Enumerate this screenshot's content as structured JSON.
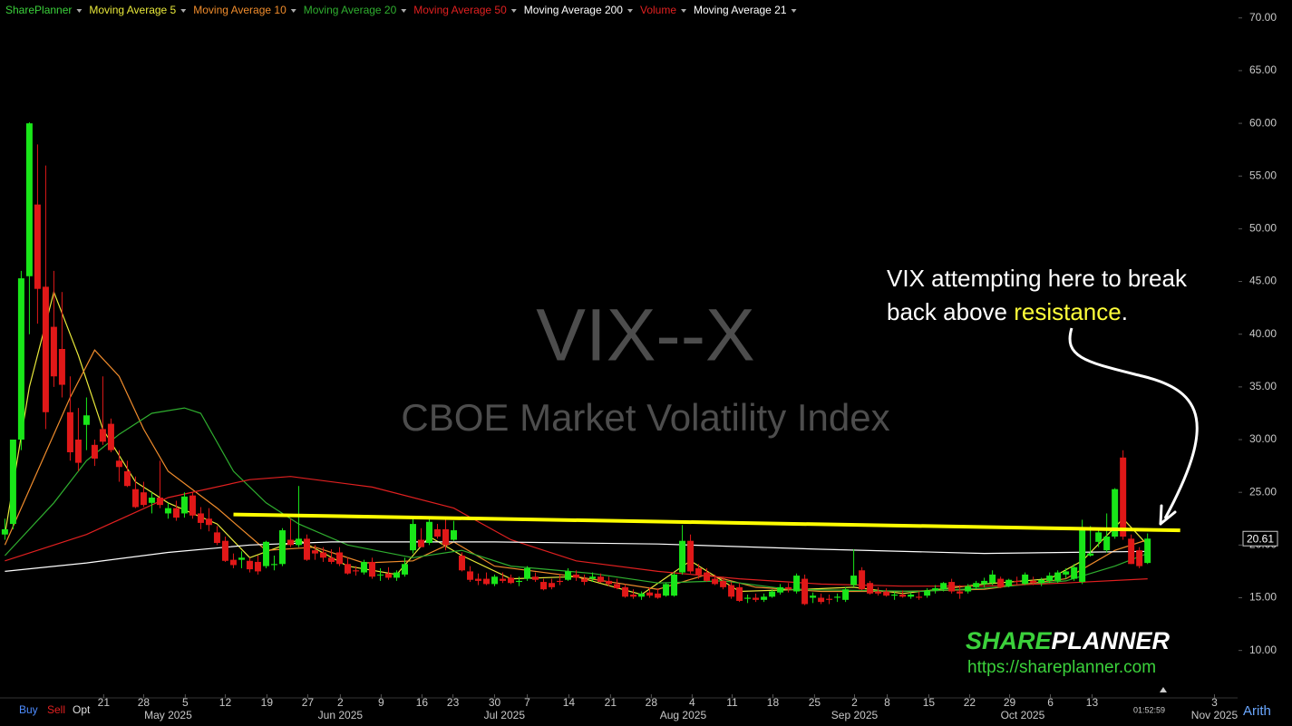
{
  "chart_data": {
    "type": "candlestick",
    "title": "VIX--X",
    "subtitle": "CBOE Market Volatility Index",
    "legend": [
      {
        "name": "SharePlanner",
        "color": "#3bd13b"
      },
      {
        "name": "Moving Average 5",
        "color": "#e8e83a"
      },
      {
        "name": "Moving Average 10",
        "color": "#f08c2c"
      },
      {
        "name": "Moving Average 20",
        "color": "#2fae2f"
      },
      {
        "name": "Moving Average 50",
        "color": "#e02020"
      },
      {
        "name": "Moving Average 200",
        "color": "#ffffff"
      },
      {
        "name": "Volume",
        "color": "#e02020"
      },
      {
        "name": "Moving Average 21",
        "color": "#ffffff"
      }
    ],
    "up_color": "#19e619",
    "down_color": "#e01818",
    "candles": [
      [
        21,
        22.5,
        20.5,
        21.5
      ],
      [
        22,
        30,
        21.5,
        30
      ],
      [
        30,
        46,
        29,
        45.3
      ],
      [
        45.5,
        60.1,
        40,
        60
      ],
      [
        52.3,
        58,
        41,
        44.3
      ],
      [
        44.5,
        56,
        31,
        32.6
      ],
      [
        40.7,
        46,
        35,
        36
      ],
      [
        38.6,
        44,
        34,
        35.2
      ],
      [
        32.6,
        36,
        28,
        28.8
      ],
      [
        30,
        33,
        27,
        27.8
      ],
      [
        31.4,
        34,
        29,
        32.3
      ],
      [
        29.5,
        30,
        27.5,
        28.2
      ],
      [
        31,
        36,
        29.5,
        29.8
      ],
      [
        31.5,
        32,
        28.8,
        29
      ],
      [
        28,
        29,
        26,
        27.4
      ],
      [
        27,
        28,
        25.5,
        25.6
      ],
      [
        25.3,
        26.5,
        23.5,
        23.6
      ],
      [
        25,
        26,
        23.6,
        23.8
      ],
      [
        24,
        25,
        23,
        24.5
      ],
      [
        24.5,
        28,
        23.5,
        23.8
      ],
      [
        23,
        24,
        22.5,
        23.5
      ],
      [
        23.5,
        24.2,
        22.3,
        22.6
      ],
      [
        23,
        25,
        22.6,
        24.6
      ],
      [
        24.7,
        25,
        22.5,
        22.8
      ],
      [
        23,
        23.6,
        21.5,
        22.1
      ],
      [
        22.5,
        23.5,
        21.3,
        21.9
      ],
      [
        21.2,
        21.8,
        20,
        20.2
      ],
      [
        20.4,
        20.8,
        18.4,
        18.5
      ],
      [
        18.6,
        19.2,
        17.8,
        18.1
      ],
      [
        18.6,
        19.4,
        17.8,
        18.8
      ],
      [
        18.5,
        18.8,
        17.4,
        17.7
      ],
      [
        18.4,
        19,
        17.2,
        17.5
      ],
      [
        18,
        20.4,
        17.8,
        20.3
      ],
      [
        18.1,
        19,
        17.6,
        18.2
      ],
      [
        18.2,
        21.6,
        18,
        21.4
      ],
      [
        20.5,
        22.5,
        19.8,
        20
      ],
      [
        20,
        25.6,
        19.8,
        20.6
      ],
      [
        20.6,
        21,
        18.5,
        18.6
      ],
      [
        19.5,
        20,
        18.6,
        19.2
      ],
      [
        19.3,
        19.8,
        18.4,
        18.8
      ],
      [
        18.8,
        19.6,
        18.2,
        18.4
      ],
      [
        19.3,
        19.8,
        18,
        18.2
      ],
      [
        18.2,
        18.8,
        17.2,
        17.3
      ],
      [
        17.6,
        18,
        17.1,
        17.5
      ],
      [
        17.4,
        18.6,
        17.2,
        18.4
      ],
      [
        18.4,
        18.8,
        16.8,
        17
      ],
      [
        17.2,
        17.8,
        16.6,
        17.2
      ],
      [
        17.3,
        17.9,
        16.7,
        16.9
      ],
      [
        16.9,
        17.6,
        16.6,
        17.4
      ],
      [
        17.2,
        18.8,
        17,
        18.2
      ],
      [
        19.5,
        22.5,
        19.2,
        22
      ],
      [
        20.5,
        21.6,
        19.8,
        19.8
      ],
      [
        20.2,
        22.6,
        20,
        22.2
      ],
      [
        21.5,
        22,
        20.6,
        20.8
      ],
      [
        21.5,
        22.5,
        19.5,
        20
      ],
      [
        20.5,
        22.3,
        20.4,
        21.4
      ],
      [
        19,
        19.3,
        17.5,
        17.6
      ],
      [
        17.5,
        18,
        16.5,
        16.7
      ],
      [
        16.8,
        17.3,
        16.2,
        16.6
      ],
      [
        16.8,
        17.4,
        16.2,
        16.3
      ],
      [
        16.3,
        17.2,
        16.1,
        17
      ],
      [
        16.8,
        17.4,
        16.4,
        16.6
      ],
      [
        16.9,
        17.2,
        16.3,
        16.4
      ],
      [
        16.5,
        17,
        16.1,
        16.6
      ],
      [
        16.8,
        18,
        16.6,
        17.8
      ],
      [
        17,
        17.4,
        16.5,
        16.7
      ],
      [
        16.5,
        16.8,
        15.7,
        15.8
      ],
      [
        16.4,
        16.8,
        15.8,
        16
      ],
      [
        16.6,
        17.2,
        16.2,
        16.5
      ],
      [
        16.7,
        17.8,
        16.6,
        17.5
      ],
      [
        17.2,
        17.6,
        16.6,
        16.9
      ],
      [
        16.8,
        17.2,
        16.2,
        16.5
      ],
      [
        16.8,
        17.4,
        16.5,
        17
      ],
      [
        17,
        17.3,
        16.4,
        16.5
      ],
      [
        16.6,
        17,
        16.1,
        16.3
      ],
      [
        16.3,
        16.8,
        15.8,
        15.9
      ],
      [
        16,
        16.3,
        15,
        15.1
      ],
      [
        15.3,
        15.8,
        14.9,
        15.1
      ],
      [
        15.1,
        15.6,
        14.8,
        15.4
      ],
      [
        15.5,
        16,
        15,
        15.2
      ],
      [
        15.4,
        15.9,
        14.9,
        15
      ],
      [
        15.2,
        16.4,
        15.1,
        16.3
      ],
      [
        15.2,
        17.4,
        15.1,
        17.2
      ],
      [
        17.4,
        21.9,
        17.2,
        20.4
      ],
      [
        20.4,
        21,
        17.3,
        17.5
      ],
      [
        17.8,
        18.2,
        16.8,
        17.2
      ],
      [
        17.4,
        17.8,
        16.5,
        16.6
      ],
      [
        16.8,
        17.2,
        16.2,
        16.3
      ],
      [
        16.6,
        17,
        15.8,
        16
      ],
      [
        16.2,
        16.5,
        14.9,
        15.1
      ],
      [
        16,
        16.4,
        14.6,
        14.7
      ],
      [
        14.9,
        15.3,
        14.5,
        15
      ],
      [
        15,
        15.4,
        14.6,
        14.8
      ],
      [
        14.8,
        15.4,
        14.6,
        15.1
      ],
      [
        15.1,
        15.8,
        15,
        15.6
      ],
      [
        15.5,
        16.3,
        15.3,
        16
      ],
      [
        16,
        16.4,
        15.5,
        15.8
      ],
      [
        15.6,
        17.3,
        15.4,
        17.1
      ],
      [
        16.8,
        17.2,
        14.3,
        14.4
      ],
      [
        15,
        15.5,
        14.5,
        15.2
      ],
      [
        15,
        15.4,
        14.4,
        14.6
      ],
      [
        14.9,
        15.3,
        14.4,
        14.8
      ],
      [
        15,
        15.4,
        14.6,
        15.1
      ],
      [
        14.8,
        16,
        14.6,
        15.8
      ],
      [
        16.2,
        19.6,
        16,
        17.1
      ],
      [
        17.6,
        17.9,
        15.7,
        15.8
      ],
      [
        16.4,
        16.6,
        15.3,
        15.4
      ],
      [
        15.6,
        16,
        15.2,
        15.4
      ],
      [
        15.6,
        15.9,
        15.1,
        15.2
      ],
      [
        15.2,
        15.6,
        14.8,
        15.3
      ],
      [
        15.3,
        15.7,
        15,
        15.1
      ],
      [
        15.1,
        15.5,
        14.9,
        15.3
      ],
      [
        15.1,
        15.6,
        14.8,
        15
      ],
      [
        15.2,
        15.9,
        15,
        15.7
      ],
      [
        15.7,
        16.2,
        15.4,
        15.9
      ],
      [
        15.8,
        16.5,
        15.6,
        16.4
      ],
      [
        16.5,
        16.8,
        15.4,
        15.6
      ],
      [
        15.6,
        16.2,
        14.9,
        15.4
      ],
      [
        15.6,
        16.3,
        15.4,
        16.1
      ],
      [
        16,
        16.6,
        15.8,
        16.4
      ],
      [
        16.3,
        16.9,
        16,
        16.6
      ],
      [
        16.4,
        17.6,
        16.2,
        17.2
      ],
      [
        16.8,
        17,
        15.9,
        16
      ],
      [
        16.1,
        16.8,
        16,
        16.7
      ],
      [
        16.6,
        17,
        16.2,
        16.5
      ],
      [
        16.3,
        17.4,
        16.2,
        17.2
      ],
      [
        16.6,
        17,
        16.2,
        16.4
      ],
      [
        16.4,
        16.9,
        16.1,
        16.7
      ],
      [
        16.6,
        17.4,
        16.4,
        17.1
      ],
      [
        16.6,
        17.6,
        16.4,
        17.4
      ],
      [
        17.2,
        17.8,
        16.8,
        17.5
      ],
      [
        16.8,
        18.2,
        16.6,
        17.9
      ],
      [
        16.5,
        22.4,
        16.3,
        21.7
      ],
      [
        19,
        21.8,
        18.9,
        19.2
      ],
      [
        20.3,
        21.5,
        19.8,
        21.2
      ],
      [
        19.5,
        23,
        19.3,
        20.8
      ],
      [
        20.8,
        25.4,
        20.6,
        25.3
      ],
      [
        28.3,
        28.99,
        20.5,
        20.8
      ],
      [
        20.6,
        21,
        18.2,
        18.2
      ],
      [
        19.5,
        19.8,
        17.8,
        18
      ],
      [
        18.3,
        21.1,
        18.2,
        20.61
      ]
    ],
    "series": [
      {
        "name": "Moving Average 5",
        "color": "#e8e83a",
        "x": [
          0,
          3,
          6,
          9,
          12,
          16,
          20,
          26,
          30,
          36,
          42,
          48,
          52,
          56,
          62,
          70,
          78,
          84,
          90,
          98,
          104,
          110,
          120,
          128,
          132,
          137,
          140
        ],
        "values": [
          21,
          35,
          44,
          38,
          31,
          26,
          24,
          22,
          18.8,
          20.5,
          18,
          17.2,
          20.8,
          19,
          16.8,
          17,
          15.3,
          18.5,
          15.6,
          15.8,
          16,
          15.4,
          16.3,
          16.8,
          18.5,
          22.5,
          20
        ]
      },
      {
        "name": "Moving Average 10",
        "color": "#f08c2c",
        "x": [
          0,
          4,
          8,
          11,
          14,
          17,
          20,
          26,
          32,
          38,
          44,
          50,
          55,
          60,
          70,
          80,
          86,
          92,
          100,
          110,
          120,
          130,
          136,
          140
        ],
        "values": [
          20,
          27,
          34,
          38.5,
          36,
          31,
          27,
          23.5,
          19.5,
          19.8,
          18.3,
          18.5,
          20.3,
          18,
          17,
          15.8,
          17.2,
          16,
          15.6,
          15.6,
          15.8,
          16.8,
          19.5,
          20.5
        ]
      },
      {
        "name": "Moving Average 20",
        "color": "#2fae2f",
        "x": [
          0,
          6,
          10,
          14,
          18,
          22,
          24,
          28,
          32,
          36,
          42,
          50,
          56,
          62,
          72,
          80,
          88,
          96,
          104,
          112,
          120,
          130,
          136,
          140
        ],
        "values": [
          19,
          24,
          28,
          30.5,
          32.5,
          33,
          32.5,
          27,
          24,
          22,
          20,
          18.8,
          19.5,
          18,
          17.3,
          16.4,
          16.6,
          15.8,
          15.7,
          15.6,
          15.9,
          16.6,
          18,
          19.2
        ]
      },
      {
        "name": "Moving Average 50",
        "color": "#e02020",
        "x": [
          0,
          10,
          20,
          30,
          35,
          45,
          55,
          62,
          70,
          80,
          90,
          100,
          110,
          120,
          130,
          140
        ],
        "values": [
          18.5,
          21,
          24.5,
          26.2,
          26.5,
          25.5,
          23.5,
          20.5,
          18.5,
          17.5,
          16.8,
          16.3,
          16.1,
          16.1,
          16.4,
          16.8
        ]
      },
      {
        "name": "Moving Average 200",
        "color": "#ffffff",
        "x": [
          0,
          10,
          20,
          30,
          40,
          60,
          80,
          100,
          120,
          130,
          140
        ],
        "values": [
          17.5,
          18.3,
          19.3,
          20,
          20.3,
          20.3,
          20.1,
          19.6,
          19.2,
          19.3,
          19.4
        ]
      }
    ],
    "resistance": {
      "color": "#ffff00",
      "x": [
        28,
        144
      ],
      "values": [
        22.9,
        21.4
      ]
    },
    "last_price": 20.61,
    "xlim": [
      -0.6,
      157.7
    ],
    "ylim": [
      5.5,
      71.7
    ],
    "yticks": [
      {
        "value": 10,
        "label": "10.00"
      },
      {
        "value": 15,
        "label": "15.00"
      },
      {
        "value": 20,
        "label": "20.00"
      },
      {
        "value": 25,
        "label": "25.00"
      },
      {
        "value": 30,
        "label": "30.00"
      },
      {
        "value": 35,
        "label": "35.00"
      },
      {
        "value": 40,
        "label": "40.00"
      },
      {
        "value": 45,
        "label": "45.00"
      },
      {
        "value": 50,
        "label": "50.00"
      },
      {
        "value": 55,
        "label": "55.00"
      },
      {
        "value": 60,
        "label": "60.00"
      },
      {
        "value": 65,
        "label": "65.00"
      },
      {
        "value": 70,
        "label": "70.00"
      }
    ],
    "xticks": [
      {
        "value": 12.1,
        "label": "21"
      },
      {
        "value": 17,
        "label": "28"
      },
      {
        "value": 22.1,
        "label": "5"
      },
      {
        "value": 27,
        "label": "12"
      },
      {
        "value": 32.1,
        "label": "19"
      },
      {
        "value": 37.1,
        "label": "27"
      },
      {
        "value": 41.1,
        "label": "2"
      },
      {
        "value": 46.1,
        "label": "9"
      },
      {
        "value": 51.1,
        "label": "16"
      },
      {
        "value": 54.9,
        "label": "23"
      },
      {
        "value": 60,
        "label": "30"
      },
      {
        "value": 64,
        "label": "7"
      },
      {
        "value": 69.1,
        "label": "14"
      },
      {
        "value": 74.2,
        "label": "21"
      },
      {
        "value": 79.2,
        "label": "28"
      },
      {
        "value": 84.2,
        "label": "4"
      },
      {
        "value": 89.1,
        "label": "11"
      },
      {
        "value": 94.1,
        "label": "18"
      },
      {
        "value": 99.2,
        "label": "25"
      },
      {
        "value": 104.1,
        "label": "2"
      },
      {
        "value": 108.1,
        "label": "8"
      },
      {
        "value": 113.2,
        "label": "15"
      },
      {
        "value": 118.2,
        "label": "22"
      },
      {
        "value": 123.1,
        "label": "29"
      },
      {
        "value": 128.1,
        "label": "6"
      },
      {
        "value": 133.2,
        "label": "13"
      },
      {
        "value": 148.2,
        "label": "3"
      }
    ],
    "month_labels": [
      {
        "value": 20,
        "label": "May 2025"
      },
      {
        "value": 41.1,
        "label": "Jun 2025"
      },
      {
        "value": 61.2,
        "label": "Jul 2025"
      },
      {
        "value": 83.1,
        "label": "Aug 2025"
      },
      {
        "value": 104.1,
        "label": "Sep 2025"
      },
      {
        "value": 124.7,
        "label": "Oct 2025"
      },
      {
        "value": 148.2,
        "label": "Nov 2025"
      }
    ],
    "annotation": {
      "line1": "VIX attempting here to break",
      "line2": "back above ",
      "highlight": "resistance",
      "end": "."
    },
    "logo": {
      "part1": "SHARE",
      "part2": "PLANNER",
      "url": "https://shareplanner.com"
    },
    "toolbar": {
      "buy": "Buy",
      "sell": "Sell",
      "opt": "Opt",
      "time": "01:52:59",
      "scale": "Arith"
    }
  }
}
